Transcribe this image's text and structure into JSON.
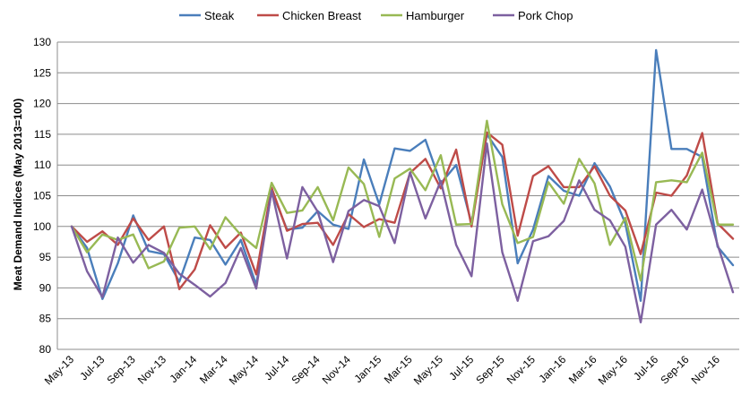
{
  "chart_data": {
    "type": "line",
    "title": "",
    "ylabel": "Meat Demand Indices (May 2013=100)",
    "xlabel": "",
    "ylim": [
      80,
      130
    ],
    "yticks": [
      80,
      85,
      90,
      95,
      100,
      105,
      110,
      115,
      120,
      125,
      130
    ],
    "grid": "horizontal",
    "legend_position": "top",
    "x": [
      "May-13",
      "Jun-13",
      "Jul-13",
      "Aug-13",
      "Sep-13",
      "Oct-13",
      "Nov-13",
      "Dec-13",
      "Jan-14",
      "Feb-14",
      "Mar-14",
      "Apr-14",
      "May-14",
      "Jun-14",
      "Jul-14",
      "Aug-14",
      "Sep-14",
      "Oct-14",
      "Nov-14",
      "Dec-14",
      "Jan-15",
      "Feb-15",
      "Mar-15",
      "Apr-15",
      "May-15",
      "Jun-15",
      "Jul-15",
      "Aug-15",
      "Sep-15",
      "Oct-15",
      "Nov-15",
      "Dec-15",
      "Jan-16",
      "Feb-16",
      "Mar-16",
      "Apr-16",
      "May-16",
      "Jun-16",
      "Jul-16",
      "Aug-16",
      "Sep-16",
      "Oct-16",
      "Nov-16",
      "Dec-16"
    ],
    "xtick_labels": [
      "May-13",
      "Jul-13",
      "Sep-13",
      "Nov-13",
      "Jan-14",
      "Mar-14",
      "May-14",
      "Jul-14",
      "Sep-14",
      "Nov-14",
      "Jan-15",
      "Mar-15",
      "May-15",
      "Jul-15",
      "Sep-15",
      "Nov-15",
      "Jan-16",
      "Mar-16",
      "May-16",
      "Jul-16",
      "Sep-16",
      "Nov-16"
    ],
    "series": [
      {
        "name": "Steak",
        "color": "#4a7ebb",
        "values": [
          100,
          96.5,
          88.2,
          94,
          101.8,
          96,
          95.5,
          91,
          98.2,
          97.8,
          93.8,
          97.8,
          90.5,
          105.8,
          99.5,
          99.8,
          102.5,
          100.3,
          99.6,
          110.9,
          103.6,
          112.7,
          112.3,
          114.1,
          107,
          110,
          100.5,
          115,
          111.3,
          94,
          99.5,
          108.2,
          105.8,
          105,
          110.3,
          106.5,
          100.5,
          87.9,
          128.7,
          112.6,
          112.6,
          111.3,
          96.7,
          93.7
        ]
      },
      {
        "name": "Chicken Breast",
        "color": "#be4b48",
        "values": [
          100,
          97.5,
          99.2,
          97,
          101.3,
          97.8,
          100,
          89.8,
          93,
          100.2,
          96.5,
          99,
          92.2,
          106.3,
          99.3,
          100.4,
          100.6,
          97,
          102,
          99.9,
          101.2,
          100.6,
          108.7,
          111,
          106.2,
          112.5,
          100,
          115.3,
          113.3,
          98.5,
          108.2,
          109.8,
          106.4,
          106.4,
          109.8,
          105,
          102.6,
          95.5,
          105.5,
          105,
          108.3,
          115.2,
          100.5,
          98
        ]
      },
      {
        "name": "Hamburger",
        "color": "#98b954",
        "values": [
          100,
          95.8,
          98.7,
          97.8,
          98.7,
          93.2,
          94.3,
          99.8,
          100,
          96.3,
          101.5,
          98.6,
          96.5,
          107.1,
          102.2,
          102.6,
          106.4,
          101,
          109.6,
          106.9,
          98.3,
          107.8,
          109.4,
          105.9,
          111.6,
          100.3,
          100.4,
          117.2,
          103.6,
          97.3,
          98.3,
          107.2,
          103.7,
          111,
          107,
          97,
          101.4,
          91.2,
          107.2,
          107.5,
          107.2,
          112,
          100.3,
          100.3
        ]
      },
      {
        "name": "Pork Chop",
        "color": "#7d60a0",
        "values": [
          100,
          92.7,
          88.5,
          98.2,
          94.1,
          97,
          95.7,
          92.3,
          90.5,
          88.6,
          90.8,
          96.5,
          89.9,
          105.8,
          94.8,
          106.4,
          102.4,
          94.2,
          102.5,
          104.3,
          103.3,
          97.3,
          108.8,
          101.3,
          107.4,
          97,
          91.9,
          113.5,
          95.8,
          87.9,
          97.6,
          98.4,
          100.9,
          107.5,
          102.7,
          101,
          96.7,
          84.4,
          100.3,
          102.7,
          99.5,
          106,
          97,
          89.3
        ]
      }
    ]
  }
}
